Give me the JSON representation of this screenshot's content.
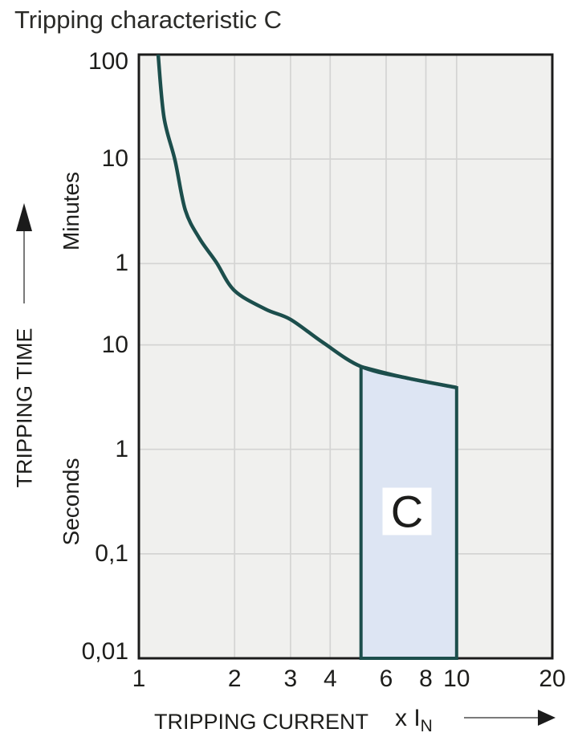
{
  "title": "Tripping characteristic C",
  "colors": {
    "curve": "#1c4e4c",
    "region_fill": "#dde5f3",
    "plot_bg": "#f0f0ee",
    "grid": "#d4d4d3",
    "frame": "#1b1b1b",
    "text": "#1d1d1b",
    "arrow_line": "#7a7a7a",
    "arrow_head": "#1b1b1b"
  },
  "y_axis": {
    "label": "TRIPPING TIME",
    "unit_top": "Minutes",
    "unit_bottom": "Seconds",
    "ticks": [
      {
        "seconds": 6000,
        "label": "100",
        "unit": "minutes"
      },
      {
        "seconds": 600,
        "label": "10",
        "unit": "minutes"
      },
      {
        "seconds": 60,
        "label": "1",
        "unit": "minutes"
      },
      {
        "seconds": 10,
        "label": "10",
        "unit": "seconds"
      },
      {
        "seconds": 1,
        "label": "1",
        "unit": "seconds"
      },
      {
        "seconds": 0.1,
        "label": "0,1",
        "unit": "seconds"
      },
      {
        "seconds": 0.01,
        "label": "0,01",
        "unit": "seconds"
      }
    ]
  },
  "x_axis": {
    "label": "TRIPPING CURRENT",
    "multiplier_label": "x I",
    "multiplier_subscript": "N",
    "ticks": [
      {
        "value": 1,
        "label": "1"
      },
      {
        "value": 2,
        "label": "2"
      },
      {
        "value": 3,
        "label": "3"
      },
      {
        "value": 4,
        "label": "4"
      },
      {
        "value": 6,
        "label": "6"
      },
      {
        "value": 8,
        "label": "8"
      },
      {
        "value": 10,
        "label": "10"
      },
      {
        "value": 20,
        "label": "20"
      }
    ]
  },
  "chart_data": {
    "type": "line",
    "title": "Tripping characteristic C",
    "xlabel": "TRIPPING CURRENT x In",
    "ylabel": "TRIPPING TIME",
    "x_scale": "log",
    "y_scale": "log",
    "xlim": [
      1,
      20
    ],
    "ylim_seconds": [
      0.01,
      6000
    ],
    "grid": "on",
    "x_gridlines": [
      2,
      3,
      4,
      6,
      8,
      10
    ],
    "y_gridlines_seconds": [
      600,
      60,
      10,
      1,
      0.1
    ],
    "series": [
      {
        "name": "tripping-curve",
        "points_x_multiple_vs_seconds": [
          [
            1.15,
            6000
          ],
          [
            1.2,
            1500
          ],
          [
            1.3,
            580
          ],
          [
            1.4,
            195
          ],
          [
            1.55,
            105
          ],
          [
            1.75,
            62
          ],
          [
            2.0,
            33
          ],
          [
            2.5,
            22
          ],
          [
            3.0,
            17.5
          ],
          [
            3.8,
            10.5
          ],
          [
            5.0,
            6.2
          ],
          [
            7.0,
            4.8
          ],
          [
            10.0,
            3.9
          ]
        ]
      }
    ],
    "region": {
      "label": "C",
      "x_from": 5,
      "x_to": 10,
      "bottom_seconds": 0.01,
      "top_boundary_x_multiple_vs_seconds": [
        [
          5.0,
          6.2
        ],
        [
          7.0,
          4.8
        ],
        [
          10.0,
          3.9
        ]
      ]
    }
  }
}
